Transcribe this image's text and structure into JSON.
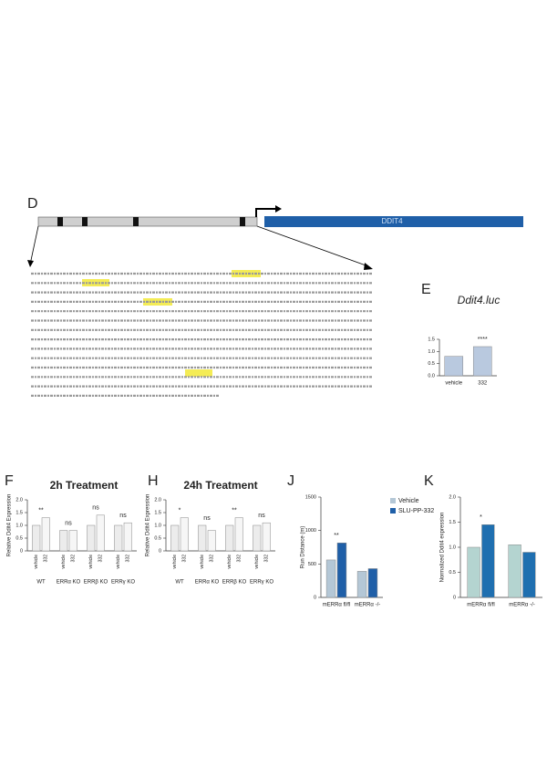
{
  "panel_d": {
    "label": "D",
    "gene": "DDIT4"
  },
  "chart_data": [
    {
      "type": "bar",
      "panel": "E",
      "title": "Ddit4.luc",
      "categories": [
        "vehicle",
        "332"
      ],
      "series": [
        {
          "color": "#b9c9df",
          "values": [
            0.8,
            1.2
          ]
        }
      ],
      "ylim": [
        0,
        1.5
      ],
      "yticks": [
        {
          "value": 0,
          "label": "0.0"
        },
        {
          "value": 0.5,
          "label": "0.5"
        },
        {
          "value": 1,
          "label": "1.0"
        },
        {
          "value": 1.5,
          "label": "1.5"
        }
      ],
      "annotations": [
        {
          "text": "****",
          "category": 1
        }
      ]
    },
    {
      "type": "bar",
      "panel": "F",
      "title": "2h Treatment",
      "ylabel": "Relative Ddit4 Expression",
      "categories": [
        "WT",
        "ERRα KO",
        "ERRβ KO",
        "ERRγ KO"
      ],
      "series": [
        {
          "name": "vehicle",
          "color": "#ececec",
          "values": [
            1.0,
            0.8,
            1.0,
            1.0
          ]
        },
        {
          "name": "332",
          "color": "#f6f6f6",
          "values": [
            1.3,
            0.8,
            1.4,
            1.1
          ]
        }
      ],
      "ylim": [
        0,
        2
      ],
      "yticks": [
        0,
        {
          "value": 0.5,
          "label": "0.5"
        },
        {
          "value": 1,
          "label": "1.0"
        },
        {
          "value": 1.5,
          "label": "1.5"
        },
        {
          "value": 2,
          "label": "2.0"
        }
      ],
      "annotations": [
        {
          "text": "**",
          "category": 0
        },
        {
          "text": "ns",
          "category": 1
        },
        {
          "text": "ns",
          "category": 2
        },
        {
          "text": "ns",
          "category": 3
        }
      ]
    },
    {
      "type": "bar",
      "panel": "H",
      "title": "24h Treatment",
      "ylabel": "Relative Ddit4 Expression",
      "categories": [
        "WT",
        "ERRα KO",
        "ERRβ KO",
        "ERRγ KO"
      ],
      "series": [
        {
          "name": "vehicle",
          "color": "#ececec",
          "values": [
            1.0,
            1.0,
            1.0,
            1.0
          ]
        },
        {
          "name": "332",
          "color": "#f6f6f6",
          "values": [
            1.3,
            0.8,
            1.3,
            1.1
          ]
        }
      ],
      "ylim": [
        0,
        2
      ],
      "yticks": [
        0,
        {
          "value": 0.5,
          "label": "0.5"
        },
        {
          "value": 1,
          "label": "1.0"
        },
        {
          "value": 1.5,
          "label": "1.5"
        },
        {
          "value": 2,
          "label": "2.0"
        }
      ],
      "annotations": [
        {
          "text": "*",
          "category": 0
        },
        {
          "text": "ns",
          "category": 1
        },
        {
          "text": "**",
          "category": 2
        },
        {
          "text": "ns",
          "category": 3
        }
      ]
    },
    {
      "type": "bar",
      "panel": "J",
      "ylabel": "Run Distance (m)",
      "categories": [
        "mERRα fl/fl",
        "mERRα -/-"
      ],
      "series": [
        {
          "name": "Vehicle",
          "color": "#b4c7d6",
          "values": [
            560,
            390
          ]
        },
        {
          "name": "SLU-PP-332",
          "color": "#1f5fa8",
          "values": [
            815,
            430
          ]
        }
      ],
      "ylim": [
        0,
        1500
      ],
      "yticks": [
        0,
        500,
        1000,
        1500
      ],
      "legend": true,
      "annotations": [
        {
          "text": "**",
          "category": 0
        }
      ]
    },
    {
      "type": "bar",
      "panel": "K",
      "ylabel": "Normalized Ddit4 expression",
      "categories": [
        "mERRα fl/fl",
        "mERRα -/-"
      ],
      "series": [
        {
          "color": "#b4d4d0",
          "values": [
            1.0,
            1.05
          ]
        },
        {
          "color": "#1f6fb0",
          "values": [
            1.45,
            0.9
          ]
        }
      ],
      "ylim": [
        0,
        2
      ],
      "yticks": [
        0,
        {
          "value": 0.5,
          "label": "0.5"
        },
        {
          "value": 1,
          "label": "1.0"
        },
        {
          "value": 1.5,
          "label": "1.5"
        },
        {
          "value": 2,
          "label": "2.0"
        }
      ],
      "annotations": [
        {
          "text": "*",
          "category": 0
        }
      ]
    }
  ]
}
